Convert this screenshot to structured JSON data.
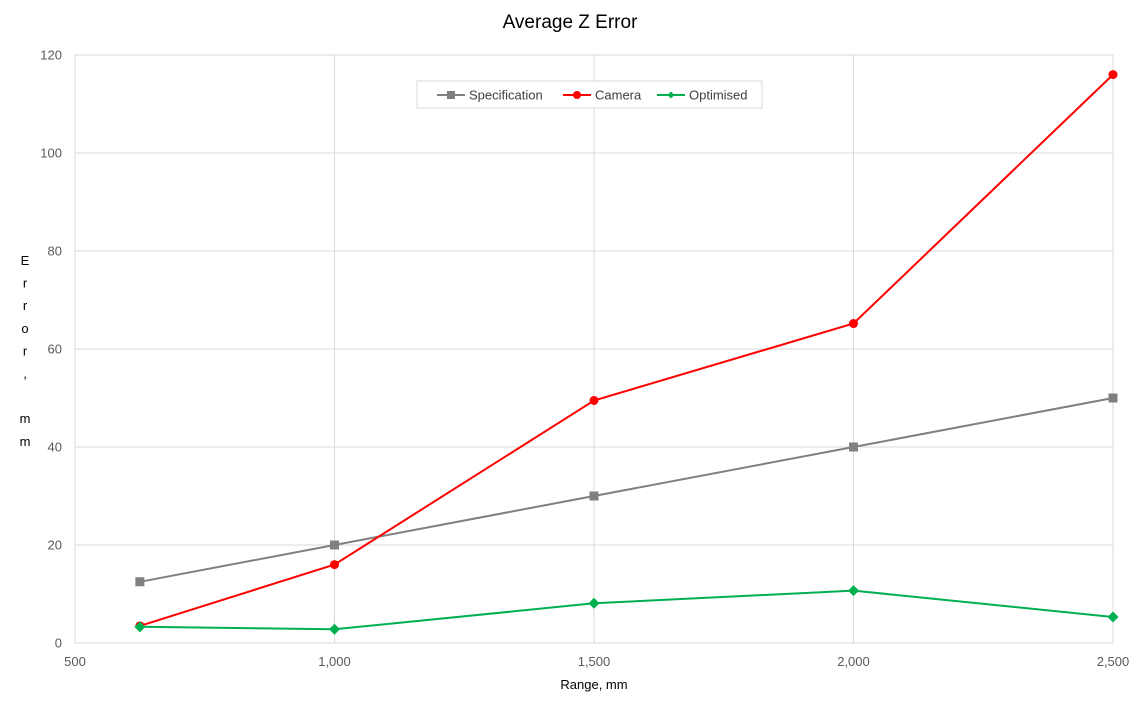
{
  "chart_data": {
    "type": "line",
    "title": "Average Z Error",
    "xlabel": "Range, mm",
    "ylabel": "Error, mm",
    "xlim": [
      500,
      2500
    ],
    "ylim": [
      0,
      120
    ],
    "x_ticks": [
      "500",
      "1,000",
      "1,500",
      "2,000",
      "2,500"
    ],
    "y_ticks": [
      "0",
      "20",
      "40",
      "60",
      "80",
      "100",
      "120"
    ],
    "grid": true,
    "legend_position": "top",
    "series": [
      {
        "name": "Specification",
        "color": "#808080",
        "marker": "square",
        "x": [
          625,
          1000,
          1500,
          2000,
          2500
        ],
        "y": [
          12.5,
          20,
          30,
          40,
          50
        ]
      },
      {
        "name": "Camera",
        "color": "#ff0000",
        "marker": "circle",
        "x": [
          625,
          1000,
          1500,
          2000,
          2500
        ],
        "y": [
          3.5,
          16,
          49.5,
          65.2,
          116
        ]
      },
      {
        "name": "Optimised",
        "color": "#00b050",
        "marker": "diamond",
        "x": [
          625,
          1000,
          1500,
          2000,
          2500
        ],
        "y": [
          3.3,
          2.8,
          8.1,
          10.7,
          5.3
        ]
      }
    ]
  }
}
